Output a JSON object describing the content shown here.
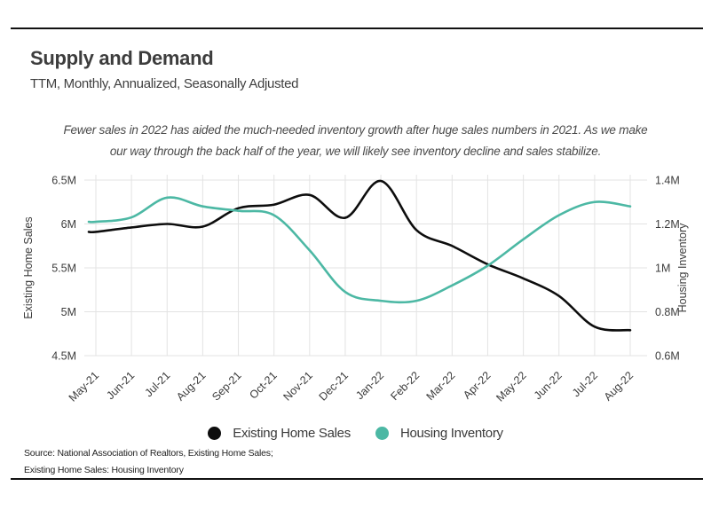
{
  "header": {
    "title": "Supply and Demand",
    "subtitle": "TTM, Monthly, Annualized, Seasonally Adjusted"
  },
  "annotation": {
    "line1": "Fewer sales in 2022 has aided the much-needed inventory growth after huge sales numbers in 2021. As we make",
    "line2": "our way through the back half of the year, we will likely see inventory decline and sales stabilize."
  },
  "chart_data": {
    "type": "line",
    "categories": [
      "May-21",
      "Jun-21",
      "Jul-21",
      "Aug-21",
      "Sep-21",
      "Oct-21",
      "Nov-21",
      "Dec-21",
      "Jan-22",
      "Feb-22",
      "Mar-22",
      "Apr-22",
      "May-22",
      "Jun-22",
      "Jul-22",
      "Aug-22"
    ],
    "series": [
      {
        "name": "Existing Home Sales",
        "axis": "left",
        "color": "#0d0d0d",
        "values": [
          5.91,
          5.96,
          6.0,
          5.97,
          6.18,
          6.22,
          6.33,
          6.07,
          6.49,
          5.93,
          5.75,
          5.54,
          5.38,
          5.18,
          4.83,
          4.79
        ]
      },
      {
        "name": "Housing Inventory",
        "axis": "right",
        "color": "#4cb8a4",
        "values": [
          1.21,
          1.23,
          1.32,
          1.28,
          1.26,
          1.24,
          1.08,
          0.89,
          0.85,
          0.85,
          0.92,
          1.01,
          1.13,
          1.24,
          1.3,
          1.28
        ]
      }
    ],
    "left_axis": {
      "label": "Existing Home Sales",
      "min": 4.5,
      "max": 6.5,
      "tick_labels": [
        "6.5M",
        "6M",
        "5.5M",
        "5M",
        "4.5M"
      ]
    },
    "right_axis": {
      "label": "Housing Inventory",
      "min": 0.6,
      "max": 1.4,
      "tick_labels": [
        "1.4M",
        "1.2M",
        "1M",
        "0.8M",
        "0.6M"
      ]
    },
    "grid": true,
    "legend_position": "bottom",
    "grid_color": "#e3e3e3",
    "tick_color": "#3c3c3c"
  },
  "legend": {
    "items": [
      {
        "label": "Existing Home Sales",
        "color": "#0d0d0d"
      },
      {
        "label": "Housing Inventory",
        "color": "#4cb8a4"
      }
    ]
  },
  "source": {
    "line1": "Source:  National Association of Realtors, Existing Home Sales;",
    "line2": "Existing Home Sales: Housing Inventory"
  }
}
